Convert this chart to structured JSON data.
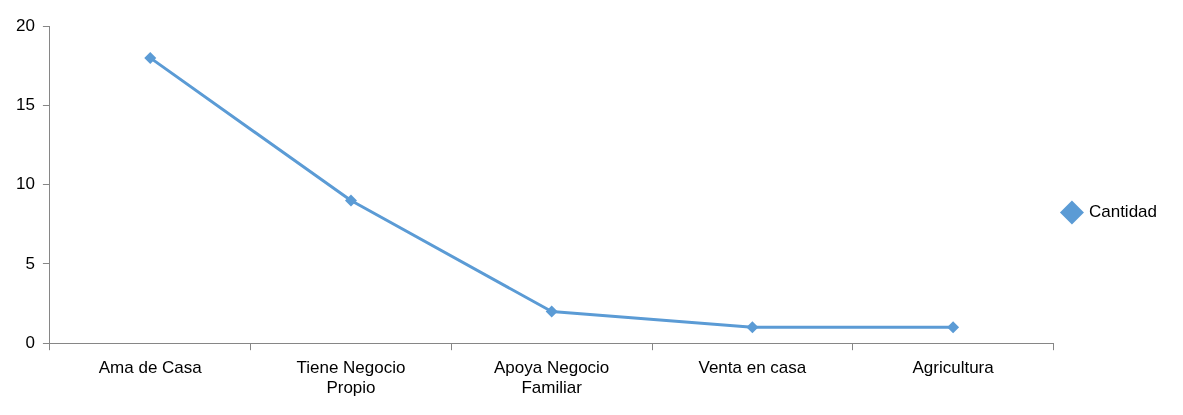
{
  "chart_data": {
    "type": "line",
    "categories": [
      "Ama de Casa",
      "Tiene Negocio Propio",
      "Apoya Negocio Familiar",
      "Venta en casa",
      "Agricultura"
    ],
    "series": [
      {
        "name": "Cantidad",
        "color": "#5b9bd5",
        "values": [
          18,
          9,
          2,
          1,
          1
        ]
      }
    ],
    "ylim": [
      0,
      20
    ],
    "yticks": [
      0,
      5,
      10,
      15,
      20
    ],
    "grid": false,
    "legend": "right",
    "marker": "diamond"
  }
}
